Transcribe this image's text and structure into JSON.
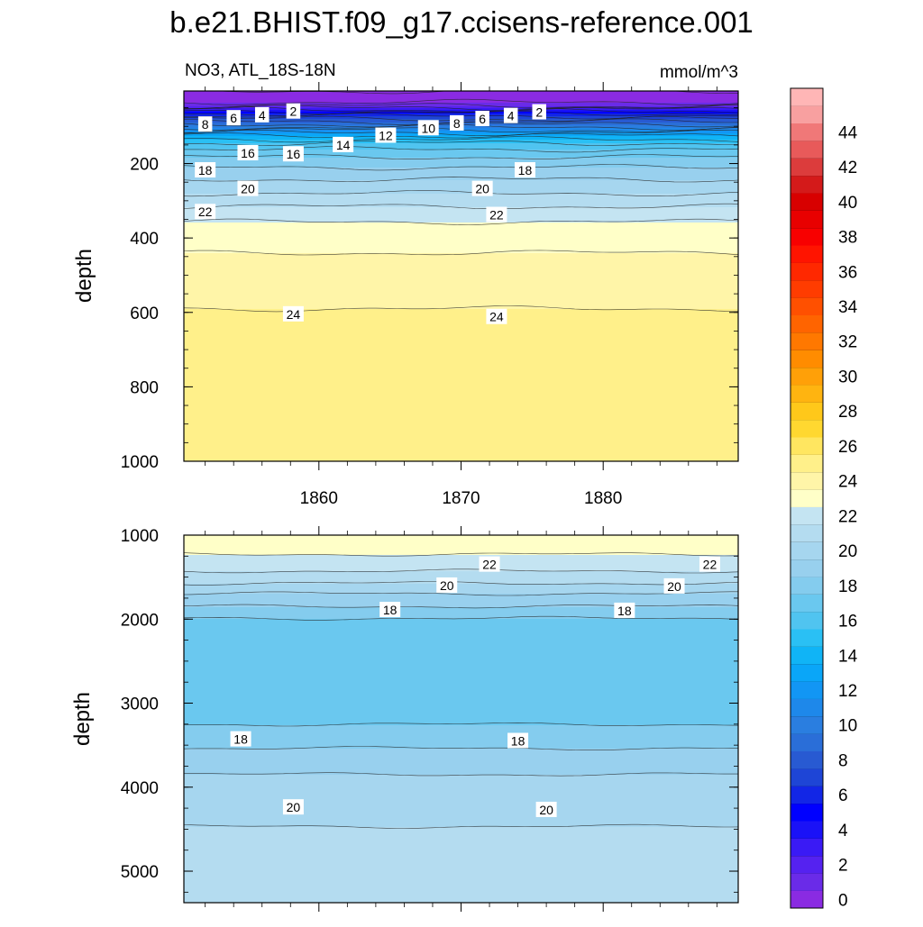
{
  "title": "b.e21.BHIST.f09_g17.ccisens-reference.001",
  "chart_data": [
    {
      "type": "heatmap",
      "panel": "upper",
      "subtitle_left": "NO3, ATL_18S-18N",
      "subtitle_right": "mmol/m^3",
      "ylabel": "depth",
      "xlabel": "",
      "x_range": [
        1850.5,
        1889.5
      ],
      "x_ticks": [
        "1860",
        "1870",
        "1880"
      ],
      "y_range": [
        1000,
        5
      ],
      "y_reversed": true,
      "y_ticks": [
        "200",
        "400",
        "600",
        "800",
        "1000"
      ],
      "contour_interval": 2,
      "profile": [
        {
          "depth": 5,
          "value": -1
        },
        {
          "depth": 30,
          "value": -0.5
        },
        {
          "depth": 45,
          "value": 1
        },
        {
          "depth": 55,
          "value": 3
        },
        {
          "depth": 65,
          "value": 5
        },
        {
          "depth": 80,
          "value": 7
        },
        {
          "depth": 95,
          "value": 9
        },
        {
          "depth": 110,
          "value": 11
        },
        {
          "depth": 125,
          "value": 13
        },
        {
          "depth": 145,
          "value": 15
        },
        {
          "depth": 170,
          "value": 16.5
        },
        {
          "depth": 195,
          "value": 17.5
        },
        {
          "depth": 225,
          "value": 18.5
        },
        {
          "depth": 260,
          "value": 19.5
        },
        {
          "depth": 300,
          "value": 20.5
        },
        {
          "depth": 340,
          "value": 21.8
        },
        {
          "depth": 440,
          "value": 23
        },
        {
          "depth": 620,
          "value": 24.2
        },
        {
          "depth": 1000,
          "value": 24.6
        }
      ],
      "contour_labels": [
        {
          "value": "2",
          "x": 1858.2,
          "depth": 60
        },
        {
          "value": "4",
          "x": 1856.0,
          "depth": 70
        },
        {
          "value": "6",
          "x": 1854.0,
          "depth": 78
        },
        {
          "value": "8",
          "x": 1852.0,
          "depth": 95
        },
        {
          "value": "2",
          "x": 1875.5,
          "depth": 62
        },
        {
          "value": "4",
          "x": 1873.5,
          "depth": 72
        },
        {
          "value": "6",
          "x": 1871.5,
          "depth": 80
        },
        {
          "value": "8",
          "x": 1869.7,
          "depth": 92
        },
        {
          "value": "10",
          "x": 1867.7,
          "depth": 105
        },
        {
          "value": "12",
          "x": 1864.7,
          "depth": 125
        },
        {
          "value": "14",
          "x": 1861.7,
          "depth": 150
        },
        {
          "value": "16",
          "x": 1858.2,
          "depth": 175
        },
        {
          "value": "16",
          "x": 1855.0,
          "depth": 172
        },
        {
          "value": "18",
          "x": 1852.0,
          "depth": 218
        },
        {
          "value": "18",
          "x": 1874.5,
          "depth": 218
        },
        {
          "value": "20",
          "x": 1855.0,
          "depth": 268
        },
        {
          "value": "20",
          "x": 1871.5,
          "depth": 268
        },
        {
          "value": "22",
          "x": 1852.0,
          "depth": 330
        },
        {
          "value": "22",
          "x": 1872.5,
          "depth": 338
        },
        {
          "value": "24",
          "x": 1858.2,
          "depth": 605
        },
        {
          "value": "24",
          "x": 1872.5,
          "depth": 612
        }
      ]
    },
    {
      "type": "heatmap",
      "panel": "lower",
      "ylabel": "depth",
      "xlabel": "",
      "x_range": [
        1850.5,
        1889.5
      ],
      "y_range": [
        5375,
        1000
      ],
      "y_reversed": true,
      "y_ticks": [
        "1000",
        "2000",
        "3000",
        "4000",
        "5000"
      ],
      "contour_interval": 2,
      "profile": [
        {
          "depth": 1000,
          "value": 22.9
        },
        {
          "depth": 1330,
          "value": 21.6
        },
        {
          "depth": 1460,
          "value": 20.8
        },
        {
          "depth": 1600,
          "value": 19.8
        },
        {
          "depth": 1720,
          "value": 18.8
        },
        {
          "depth": 1880,
          "value": 17.8
        },
        {
          "depth": 2100,
          "value": 16.2
        },
        {
          "depth": 3000,
          "value": 16.1
        },
        {
          "depth": 3420,
          "value": 17.6
        },
        {
          "depth": 3800,
          "value": 18.9
        },
        {
          "depth": 4230,
          "value": 19.8
        },
        {
          "depth": 5180,
          "value": 20.6
        },
        {
          "depth": 5375,
          "value": 20.8
        }
      ],
      "contour_labels": [
        {
          "value": "22",
          "x": 1872.0,
          "depth": 1350
        },
        {
          "value": "22",
          "x": 1887.5,
          "depth": 1350
        },
        {
          "value": "20",
          "x": 1869.0,
          "depth": 1600
        },
        {
          "value": "20",
          "x": 1885.0,
          "depth": 1610
        },
        {
          "value": "18",
          "x": 1865.0,
          "depth": 1890
        },
        {
          "value": "18",
          "x": 1881.5,
          "depth": 1900
        },
        {
          "value": "18",
          "x": 1854.5,
          "depth": 3430
        },
        {
          "value": "18",
          "x": 1874.0,
          "depth": 3450
        },
        {
          "value": "20",
          "x": 1858.2,
          "depth": 4240
        },
        {
          "value": "20",
          "x": 1876.0,
          "depth": 4270
        }
      ]
    }
  ],
  "colorbar": {
    "tick_labels": [
      "0",
      "2",
      "4",
      "6",
      "8",
      "10",
      "12",
      "14",
      "16",
      "18",
      "20",
      "22",
      "24",
      "26",
      "28",
      "30",
      "32",
      "34",
      "36",
      "38",
      "40",
      "42",
      "44"
    ],
    "colors": [
      "#8a2be2",
      "#6a2be8",
      "#5522f0",
      "#3a1af5",
      "#1a12f7",
      "#0000ff",
      "#1226e6",
      "#1e45d6",
      "#285ad2",
      "#2a6ed8",
      "#2a7ee0",
      "#1e88ea",
      "#1296f4",
      "#0aa6f8",
      "#10b4f6",
      "#2ac0f4",
      "#50c4f0",
      "#6ac8ef",
      "#84ccee",
      "#98d0ee",
      "#a6d6ef",
      "#b4dcf0",
      "#c4e4f2",
      "#ffffc8",
      "#fff5a8",
      "#fff08a",
      "#ffe660",
      "#ffd830",
      "#ffc81a",
      "#ffb410",
      "#ffa008",
      "#ff8c00",
      "#ff7800",
      "#ff6400",
      "#ff5000",
      "#ff3c00",
      "#ff2800",
      "#ff1400",
      "#f80000",
      "#e80000",
      "#d80000",
      "#d41a1a",
      "#dc3c3c",
      "#e85a5a",
      "#f07878",
      "#f8a0a0",
      "#ffb6b6"
    ]
  }
}
